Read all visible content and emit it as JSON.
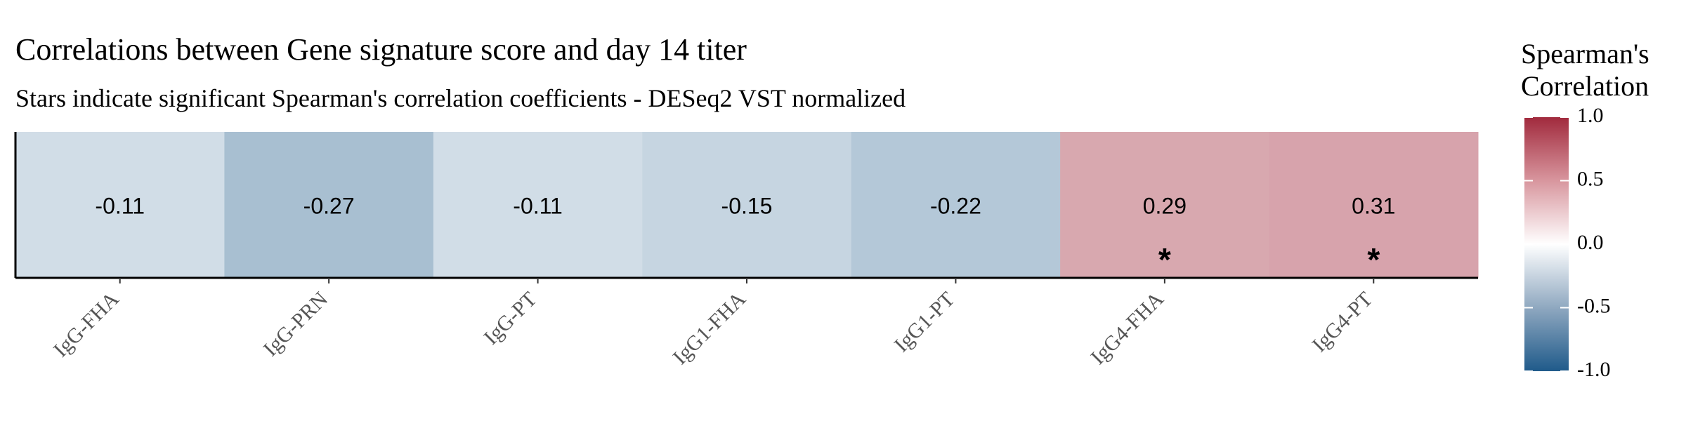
{
  "chart_data": {
    "type": "heatmap",
    "title": "Correlations between Gene signature score and day 14 titer",
    "subtitle": "Stars indicate significant Spearman's correlation coefficients - DESeq2 VST normalized",
    "categories": [
      "IgG-FHA",
      "IgG-PRN",
      "IgG-PT",
      "IgG1-FHA",
      "IgG1-PT",
      "IgG4-FHA",
      "IgG4-PT"
    ],
    "values": [
      -0.11,
      -0.27,
      -0.11,
      -0.15,
      -0.22,
      0.29,
      0.31
    ],
    "value_labels": [
      "-0.11",
      "-0.27",
      "-0.11",
      "-0.15",
      "-0.22",
      "0.29",
      "0.31"
    ],
    "significant": [
      false,
      false,
      false,
      false,
      false,
      true,
      true
    ],
    "significance_marker": "*",
    "legend": {
      "title": "Spearman's\nCorrelation",
      "range": [
        -1.0,
        1.0
      ],
      "ticks": [
        1.0,
        0.5,
        0.0,
        -0.5,
        -1.0
      ],
      "tick_labels": [
        "1.0",
        "0.5",
        "0.0",
        "-0.5",
        "-1.0"
      ],
      "placement": "right"
    },
    "colors": {
      "low": "#1f5a8a",
      "mid": "#ffffff",
      "high": "#a12a3d"
    }
  }
}
